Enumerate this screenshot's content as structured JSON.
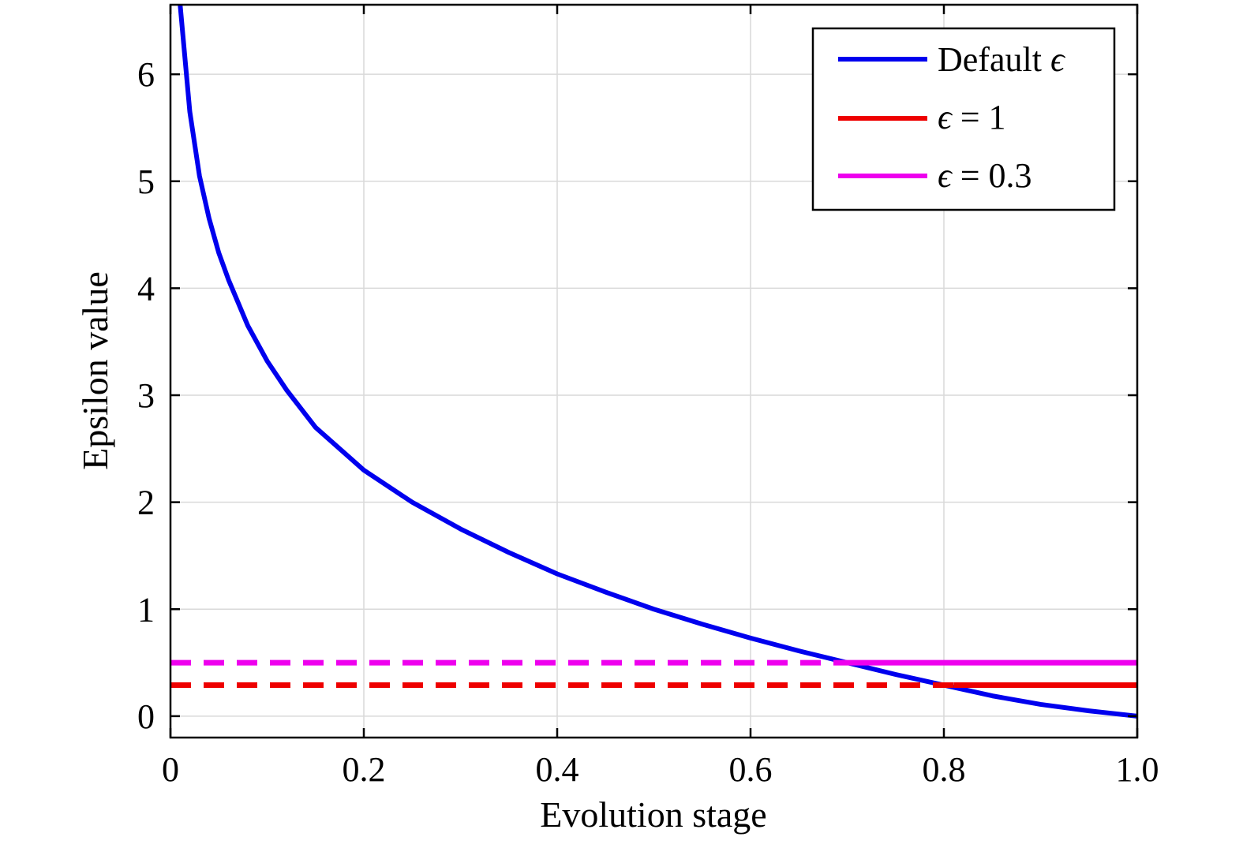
{
  "chart_data": {
    "type": "line",
    "title": "",
    "xlabel": "Evolution stage",
    "ylabel": "Epsilon value",
    "xlim": [
      0,
      1
    ],
    "ylim": [
      -0.2,
      6.65
    ],
    "x_ticks": [
      "0",
      "0.2",
      "0.4",
      "0.6",
      "0.8",
      "1.0"
    ],
    "x_tick_values": [
      0,
      0.2,
      0.4,
      0.6,
      0.8,
      1.0
    ],
    "y_ticks": [
      "0",
      "1",
      "2",
      "3",
      "4",
      "5",
      "6"
    ],
    "y_tick_values": [
      0,
      1,
      2,
      3,
      4,
      5,
      6
    ],
    "grid": true,
    "legend_position": "top-right",
    "legend": {
      "default_label": "Default ",
      "default_symbol": "ϵ",
      "eps1_symbol": "ϵ",
      "eps1_label": " = 1",
      "eps03_symbol": "ϵ",
      "eps03_label": " = 0.3"
    },
    "series": [
      {
        "key": "default",
        "color": "#0000ee",
        "style": "solid",
        "x": [
          0.01,
          0.02,
          0.03,
          0.04,
          0.05,
          0.06,
          0.08,
          0.1,
          0.12,
          0.15,
          0.2,
          0.25,
          0.3,
          0.35,
          0.4,
          0.45,
          0.5,
          0.55,
          0.6,
          0.65,
          0.7,
          0.75,
          0.8,
          0.85,
          0.9,
          0.95,
          1.0
        ],
        "y": [
          6.65,
          5.65,
          5.05,
          4.65,
          4.33,
          4.08,
          3.65,
          3.32,
          3.05,
          2.7,
          2.3,
          2.0,
          1.75,
          1.53,
          1.33,
          1.16,
          1.0,
          0.86,
          0.73,
          0.61,
          0.5,
          0.39,
          0.29,
          0.19,
          0.11,
          0.05,
          0.0
        ]
      },
      {
        "key": "eps1",
        "color": "#ee0000",
        "value": 0.29,
        "dashed_x": [
          0,
          0.81
        ],
        "solid_x": [
          0.81,
          1.0
        ]
      },
      {
        "key": "eps03",
        "color": "#ee00ee",
        "value": 0.5,
        "dashed_x": [
          0,
          0.7
        ],
        "solid_x": [
          0.7,
          1.0
        ]
      }
    ]
  }
}
